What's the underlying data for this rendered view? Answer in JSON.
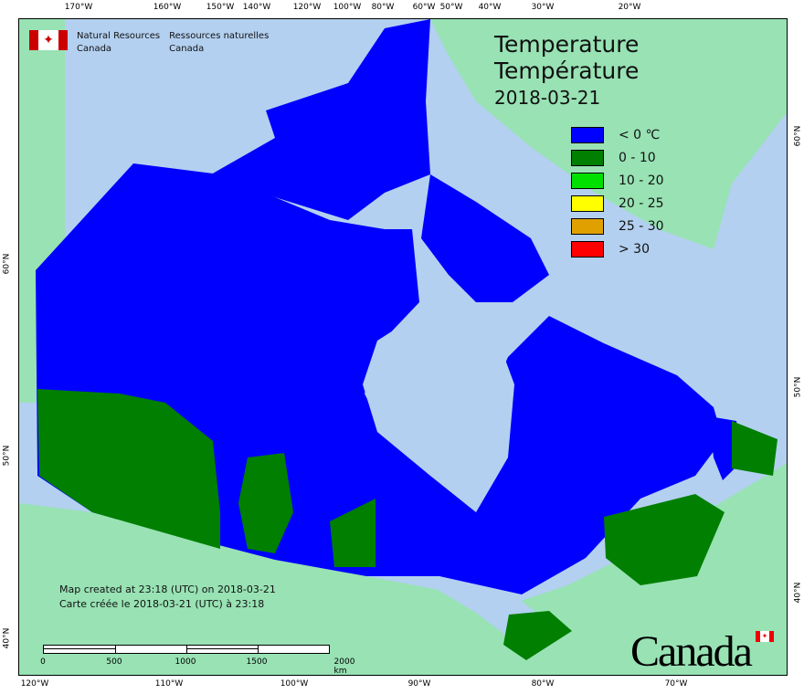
{
  "agency": {
    "en_line1": "Natural Resources",
    "en_line2": "Canada",
    "fr_line1": "Ressources naturelles",
    "fr_line2": "Canada"
  },
  "title": {
    "en": "Temperature",
    "fr": "Température",
    "date": "2018-03-21"
  },
  "legend": [
    {
      "label": "< 0 ℃",
      "color": "#0000ff"
    },
    {
      "label": "0 - 10",
      "color": "#007f00"
    },
    {
      "label": "10 - 20",
      "color": "#00e000"
    },
    {
      "label": "20 - 25",
      "color": "#ffff00"
    },
    {
      "label": "25 - 30",
      "color": "#e0a000"
    },
    {
      "label": "> 30",
      "color": "#ff0000"
    }
  ],
  "created": {
    "en": "Map created at 23:18 (UTC) on 2018-03-21",
    "fr": "Carte créée le 2018-03-21 (UTC) à 23:18"
  },
  "scale": {
    "labels": [
      "0",
      "500",
      "1000",
      "1500",
      "2000  km"
    ]
  },
  "graticule": {
    "top": [
      "170°W",
      "160°W",
      "150°W",
      "140°W",
      "120°W",
      "100°W",
      "80°W",
      "60°W",
      "50°W",
      "40°W",
      "30°W",
      "20°W"
    ],
    "bottom": [
      "120°W",
      "110°W",
      "100°W",
      "90°W",
      "80°W",
      "70°W"
    ],
    "left": [
      "60°N",
      "50°N",
      "40°N"
    ],
    "right": [
      "60°N",
      "50°N",
      "40°N"
    ]
  },
  "wordmark": "Canada",
  "colors": {
    "water": "#b3d0f0",
    "foreign_land": "#98e2b4",
    "below_zero": "#0000ff",
    "zero_to_ten": "#007f00"
  }
}
